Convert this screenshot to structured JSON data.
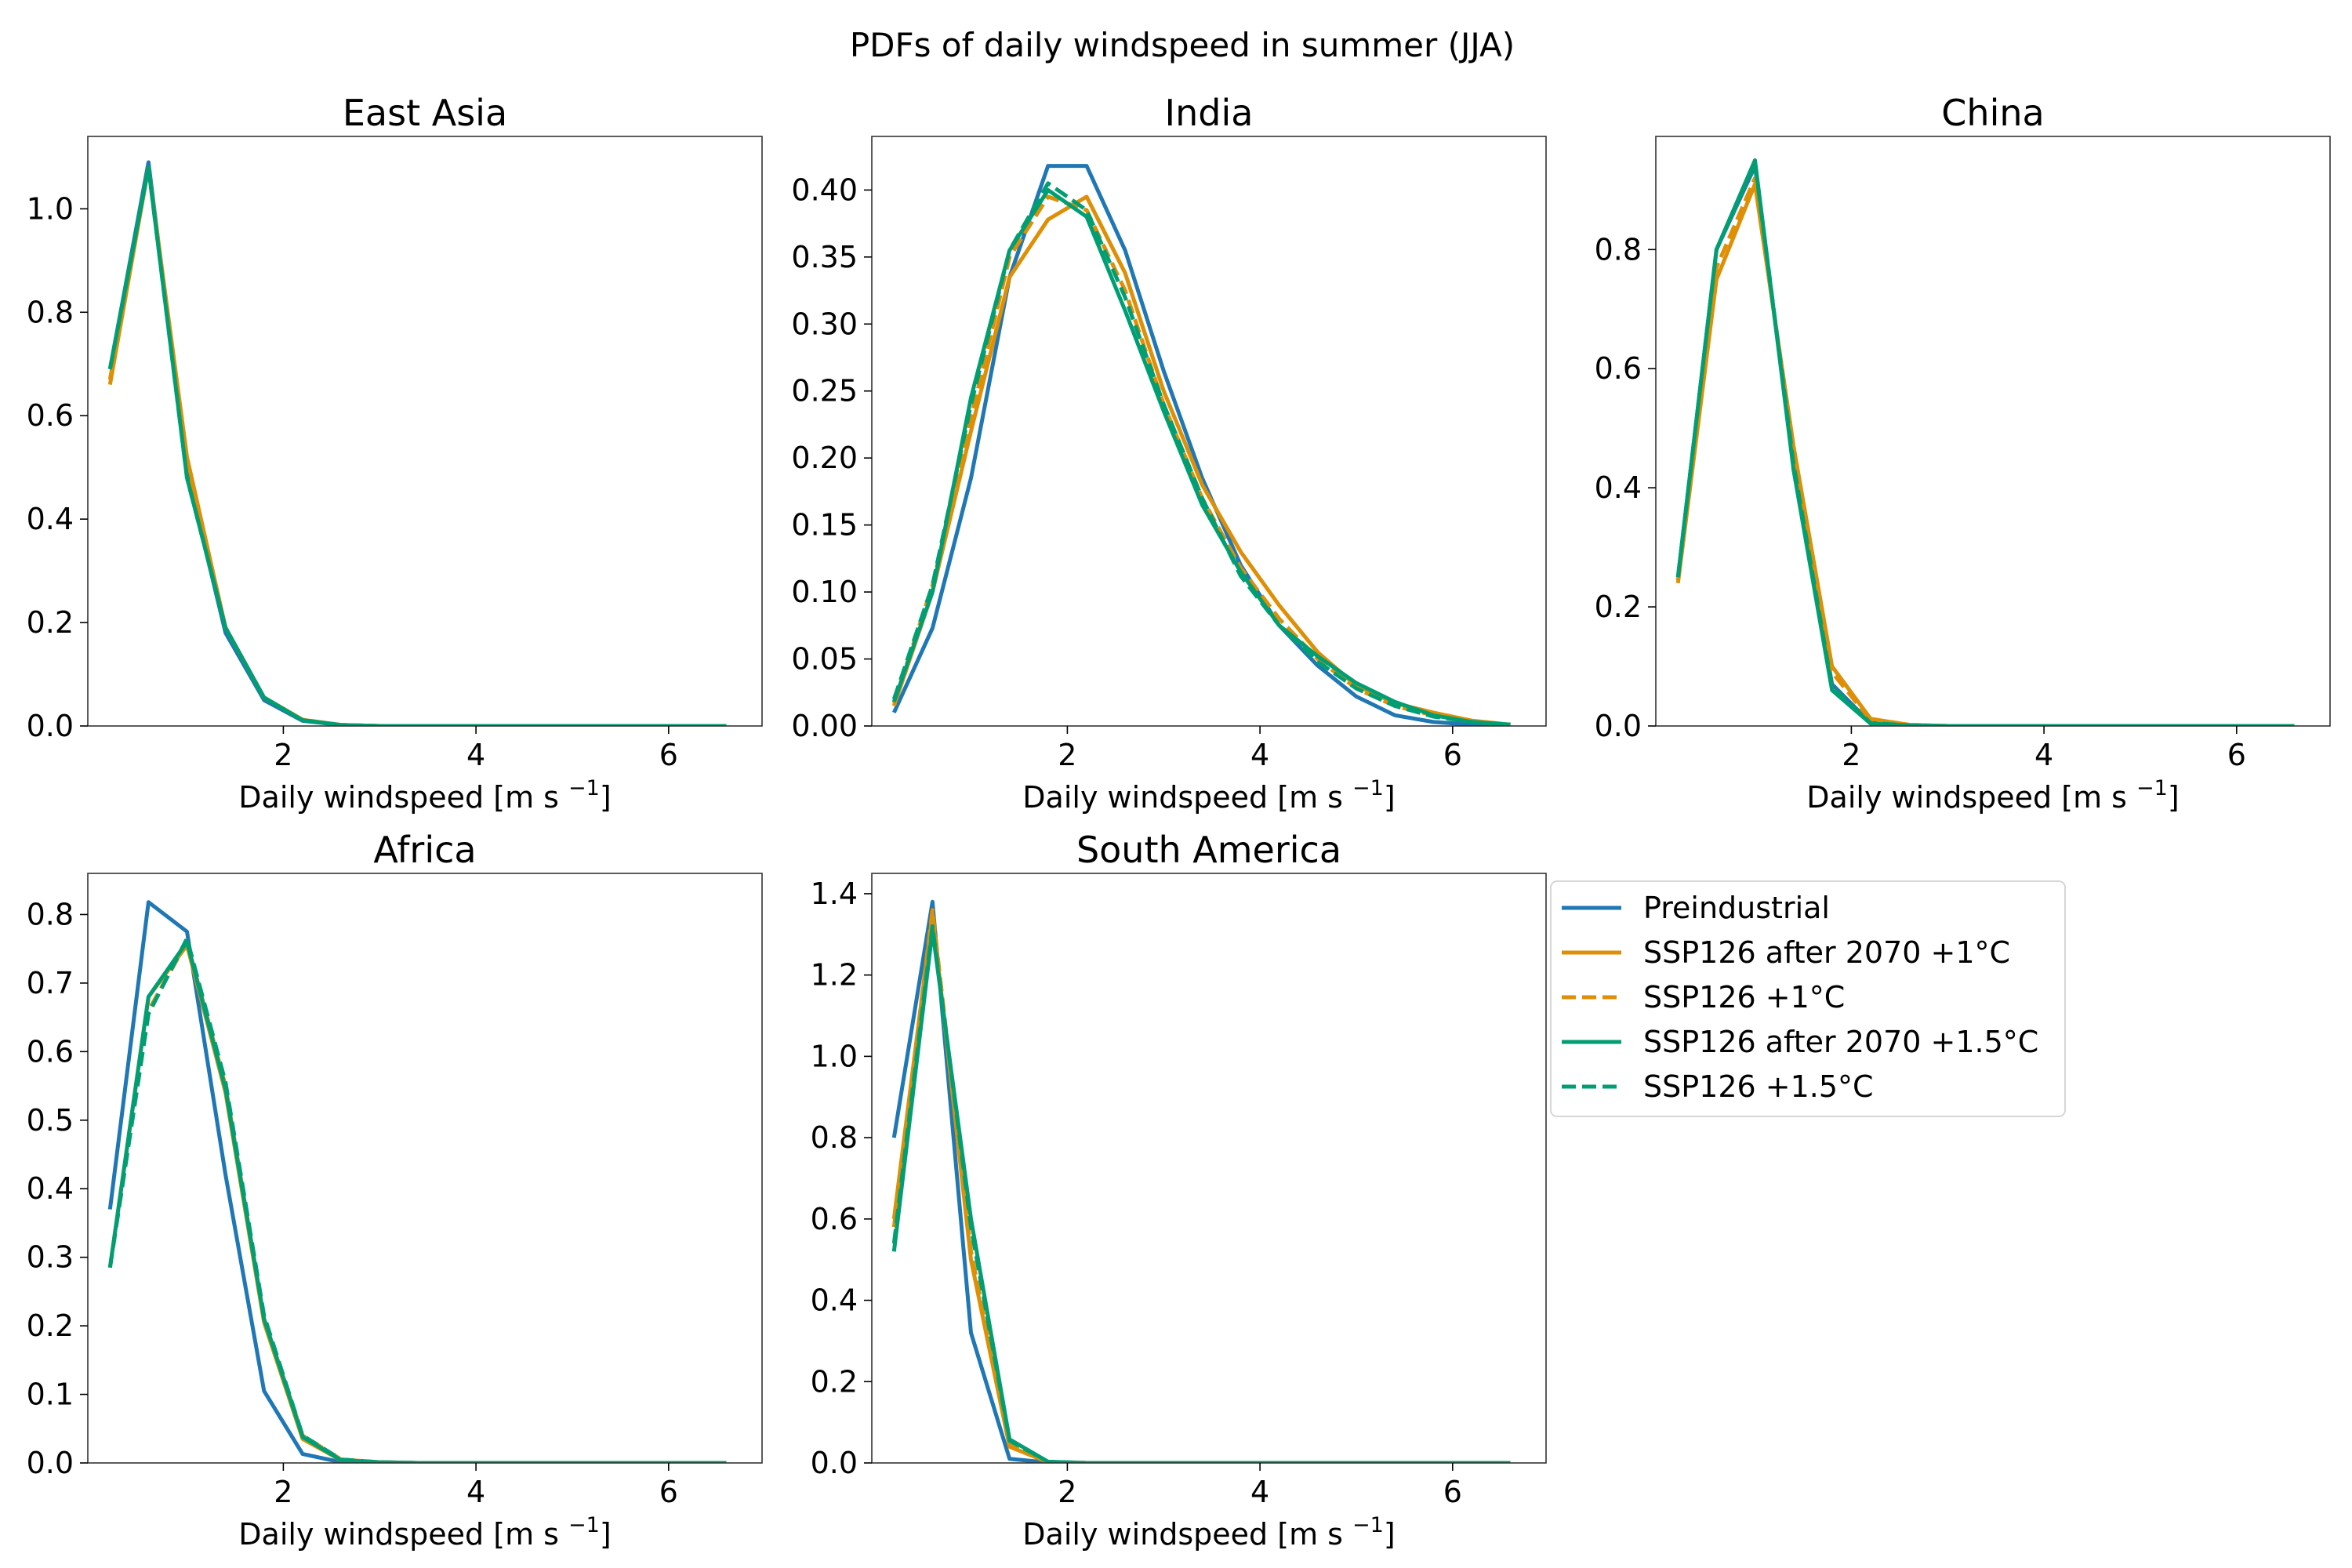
{
  "figure": {
    "title": "PDFs of daily windspeed in summer (JJA)",
    "xlabel": "Daily windspeed [m s",
    "xlabel_sup": "−1",
    "xlabel_end": "]"
  },
  "legend": {
    "entries": [
      {
        "name": "Preindustrial",
        "color": "#1f77b4",
        "dash": false
      },
      {
        "name": "SSP126 after 2070 +1°C",
        "color": "#de8f05",
        "dash": false
      },
      {
        "name": "SSP126 +1°C",
        "color": "#de8f05",
        "dash": true
      },
      {
        "name": "SSP126 after 2070 +1.5°C",
        "color": "#029e73",
        "dash": false
      },
      {
        "name": "SSP126 +1.5°C",
        "color": "#029e73",
        "dash": true
      }
    ]
  },
  "colors": {
    "preindustrial": "#0173b2",
    "ssp126_1": "#de8f05",
    "ssp126_15": "#029e73"
  },
  "chart_data": [
    {
      "type": "line",
      "title": "East Asia",
      "xlim": [
        -0.03,
        6.97
      ],
      "ylim": [
        0,
        1.14
      ],
      "xticks": [
        2,
        4,
        6
      ],
      "yticks": [
        0.0,
        0.2,
        0.4,
        0.6,
        0.8,
        1.0
      ],
      "ytick_labels": [
        "0.0",
        "0.2",
        "0.4",
        "0.6",
        "0.8",
        "1.0"
      ],
      "x": [
        0.2,
        0.6,
        1.0,
        1.4,
        1.8,
        2.2,
        2.6,
        3.0,
        3.4,
        3.8,
        4.2,
        4.6,
        5.0,
        5.4,
        5.8,
        6.2,
        6.6
      ],
      "series": [
        {
          "name": "Preindustrial",
          "values": [
            0.69,
            1.09,
            0.49,
            0.18,
            0.05,
            0.01,
            0.002,
            0,
            0,
            0,
            0,
            0,
            0,
            0,
            0,
            0,
            0
          ]
        },
        {
          "name": "SSP126 after 2070 +1°C",
          "values": [
            0.66,
            1.08,
            0.52,
            0.19,
            0.055,
            0.012,
            0.002,
            0,
            0,
            0,
            0,
            0,
            0,
            0,
            0,
            0,
            0
          ]
        },
        {
          "name": "SSP126 +1°C",
          "values": [
            0.67,
            1.08,
            0.51,
            0.19,
            0.055,
            0.012,
            0.002,
            0,
            0,
            0,
            0,
            0,
            0,
            0,
            0,
            0,
            0
          ]
        },
        {
          "name": "SSP126 after 2070 +1.5°C",
          "values": [
            0.69,
            1.08,
            0.48,
            0.19,
            0.055,
            0.011,
            0.002,
            0,
            0,
            0,
            0,
            0,
            0,
            0,
            0,
            0,
            0
          ]
        },
        {
          "name": "SSP126 +1.5°C",
          "values": [
            0.69,
            1.08,
            0.48,
            0.19,
            0.055,
            0.011,
            0.002,
            0,
            0,
            0,
            0,
            0,
            0,
            0,
            0,
            0,
            0
          ]
        }
      ]
    },
    {
      "type": "line",
      "title": "India",
      "xlim": [
        -0.03,
        6.97
      ],
      "ylim": [
        0,
        0.44
      ],
      "xticks": [
        2,
        4,
        6
      ],
      "yticks": [
        0.0,
        0.05,
        0.1,
        0.15,
        0.2,
        0.25,
        0.3,
        0.35,
        0.4
      ],
      "ytick_labels": [
        "0.00",
        "0.05",
        "0.10",
        "0.15",
        "0.20",
        "0.25",
        "0.30",
        "0.35",
        "0.40"
      ],
      "x": [
        0.2,
        0.6,
        1.0,
        1.4,
        1.8,
        2.2,
        2.6,
        3.0,
        3.4,
        3.8,
        4.2,
        4.6,
        5.0,
        5.4,
        5.8,
        6.2,
        6.6
      ],
      "series": [
        {
          "name": "Preindustrial",
          "values": [
            0.01,
            0.073,
            0.185,
            0.335,
            0.418,
            0.418,
            0.355,
            0.265,
            0.185,
            0.12,
            0.075,
            0.045,
            0.022,
            0.008,
            0.003,
            0.001,
            0
          ]
        },
        {
          "name": "SSP126 after 2070 +1°C",
          "values": [
            0.015,
            0.1,
            0.22,
            0.335,
            0.378,
            0.395,
            0.338,
            0.25,
            0.18,
            0.13,
            0.09,
            0.055,
            0.03,
            0.017,
            0.01,
            0.004,
            0.001
          ]
        },
        {
          "name": "SSP126 +1°C",
          "values": [
            0.017,
            0.105,
            0.23,
            0.35,
            0.395,
            0.385,
            0.325,
            0.24,
            0.17,
            0.118,
            0.08,
            0.05,
            0.028,
            0.015,
            0.008,
            0.003,
            0.001
          ]
        },
        {
          "name": "SSP126 after 2070 +1.5°C",
          "values": [
            0.018,
            0.1,
            0.245,
            0.355,
            0.4,
            0.38,
            0.31,
            0.235,
            0.165,
            0.115,
            0.075,
            0.052,
            0.032,
            0.018,
            0.008,
            0.003,
            0.001
          ]
        },
        {
          "name": "SSP126 +1.5°C",
          "values": [
            0.02,
            0.105,
            0.24,
            0.355,
            0.405,
            0.385,
            0.32,
            0.24,
            0.17,
            0.112,
            0.075,
            0.048,
            0.028,
            0.015,
            0.007,
            0.003,
            0.001
          ]
        }
      ]
    },
    {
      "type": "line",
      "title": "China",
      "xlim": [
        -0.03,
        6.97
      ],
      "ylim": [
        0,
        0.99
      ],
      "xticks": [
        2,
        4,
        6
      ],
      "yticks": [
        0.0,
        0.2,
        0.4,
        0.6,
        0.8
      ],
      "ytick_labels": [
        "0.0",
        "0.2",
        "0.4",
        "0.6",
        "0.8"
      ],
      "x": [
        0.2,
        0.6,
        1.0,
        1.4,
        1.8,
        2.2,
        2.6,
        3.0,
        3.4,
        3.8,
        4.2,
        4.6,
        5.0,
        5.4,
        5.8,
        6.2,
        6.6
      ],
      "series": [
        {
          "name": "Preindustrial",
          "values": [
            0.25,
            0.8,
            0.94,
            0.44,
            0.07,
            0.005,
            0.001,
            0,
            0,
            0,
            0,
            0,
            0,
            0,
            0,
            0,
            0
          ]
        },
        {
          "name": "SSP126 after 2070 +1°C",
          "values": [
            0.24,
            0.75,
            0.91,
            0.47,
            0.1,
            0.012,
            0.002,
            0,
            0,
            0,
            0,
            0,
            0,
            0,
            0,
            0,
            0
          ]
        },
        {
          "name": "SSP126 +1°C",
          "values": [
            0.245,
            0.77,
            0.92,
            0.46,
            0.09,
            0.01,
            0.002,
            0,
            0,
            0,
            0,
            0,
            0,
            0,
            0,
            0,
            0
          ]
        },
        {
          "name": "SSP126 after 2070 +1.5°C",
          "values": [
            0.25,
            0.8,
            0.95,
            0.43,
            0.06,
            0.004,
            0.001,
            0,
            0,
            0,
            0,
            0,
            0,
            0,
            0,
            0,
            0
          ]
        },
        {
          "name": "SSP126 +1.5°C",
          "values": [
            0.25,
            0.8,
            0.945,
            0.44,
            0.065,
            0.005,
            0.001,
            0,
            0,
            0,
            0,
            0,
            0,
            0,
            0,
            0,
            0
          ]
        }
      ]
    },
    {
      "type": "line",
      "title": "Africa",
      "xlim": [
        -0.03,
        6.97
      ],
      "ylim": [
        0,
        0.86
      ],
      "xticks": [
        2,
        4,
        6
      ],
      "yticks": [
        0.0,
        0.1,
        0.2,
        0.3,
        0.4,
        0.5,
        0.6,
        0.7,
        0.8
      ],
      "ytick_labels": [
        "0.0",
        "0.1",
        "0.2",
        "0.3",
        "0.4",
        "0.5",
        "0.6",
        "0.7",
        "0.8"
      ],
      "x": [
        0.2,
        0.6,
        1.0,
        1.4,
        1.8,
        2.2,
        2.6,
        3.0,
        3.4,
        3.8,
        4.2,
        4.6,
        5.0,
        5.4,
        5.8,
        6.2,
        6.6
      ],
      "series": [
        {
          "name": "Preindustrial",
          "values": [
            0.37,
            0.818,
            0.775,
            0.42,
            0.105,
            0.013,
            0.001,
            0,
            0,
            0,
            0,
            0,
            0,
            0,
            0,
            0,
            0
          ]
        },
        {
          "name": "SSP126 after 2070 +1°C",
          "values": [
            0.285,
            0.68,
            0.755,
            0.54,
            0.205,
            0.035,
            0.004,
            0.001,
            0,
            0,
            0,
            0,
            0,
            0,
            0,
            0,
            0
          ]
        },
        {
          "name": "SSP126 +1°C",
          "values": [
            0.285,
            0.66,
            0.76,
            0.55,
            0.21,
            0.04,
            0.005,
            0.001,
            0,
            0,
            0,
            0,
            0,
            0,
            0,
            0,
            0
          ]
        },
        {
          "name": "SSP126 after 2070 +1.5°C",
          "values": [
            0.285,
            0.68,
            0.76,
            0.545,
            0.21,
            0.038,
            0.004,
            0.001,
            0,
            0,
            0,
            0,
            0,
            0,
            0,
            0,
            0
          ]
        },
        {
          "name": "SSP126 +1.5°C",
          "values": [
            0.285,
            0.655,
            0.765,
            0.555,
            0.215,
            0.04,
            0.005,
            0.001,
            0,
            0,
            0,
            0,
            0,
            0,
            0,
            0,
            0
          ]
        }
      ]
    },
    {
      "type": "line",
      "title": "South America",
      "xlim": [
        -0.03,
        6.97
      ],
      "ylim": [
        0,
        1.45
      ],
      "xticks": [
        2,
        4,
        6
      ],
      "yticks": [
        0.0,
        0.2,
        0.4,
        0.6,
        0.8,
        1.0,
        1.2,
        1.4
      ],
      "ytick_labels": [
        "0.0",
        "0.2",
        "0.4",
        "0.6",
        "0.8",
        "1.0",
        "1.2",
        "1.4"
      ],
      "x": [
        0.2,
        0.6,
        1.0,
        1.4,
        1.8,
        2.2,
        2.6,
        3.0,
        3.4,
        3.8,
        4.2,
        4.6,
        5.0,
        5.4,
        5.8,
        6.2,
        6.6
      ],
      "series": [
        {
          "name": "Preindustrial",
          "values": [
            0.8,
            1.38,
            0.32,
            0.01,
            0.001,
            0,
            0,
            0,
            0,
            0,
            0,
            0,
            0,
            0,
            0,
            0,
            0
          ]
        },
        {
          "name": "SSP126 after 2070 +1°C",
          "values": [
            0.6,
            1.35,
            0.5,
            0.04,
            0.002,
            0,
            0,
            0,
            0,
            0,
            0,
            0,
            0,
            0,
            0,
            0,
            0
          ]
        },
        {
          "name": "SSP126 +1°C",
          "values": [
            0.58,
            1.36,
            0.52,
            0.045,
            0.002,
            0,
            0,
            0,
            0,
            0,
            0,
            0,
            0,
            0,
            0,
            0,
            0
          ]
        },
        {
          "name": "SSP126 after 2070 +1.5°C",
          "values": [
            0.52,
            1.31,
            0.6,
            0.058,
            0.003,
            0,
            0,
            0,
            0,
            0,
            0,
            0,
            0,
            0,
            0,
            0,
            0
          ]
        },
        {
          "name": "SSP126 +1.5°C",
          "values": [
            0.54,
            1.32,
            0.58,
            0.055,
            0.003,
            0,
            0,
            0,
            0,
            0,
            0,
            0,
            0,
            0,
            0,
            0,
            0
          ]
        }
      ]
    }
  ]
}
